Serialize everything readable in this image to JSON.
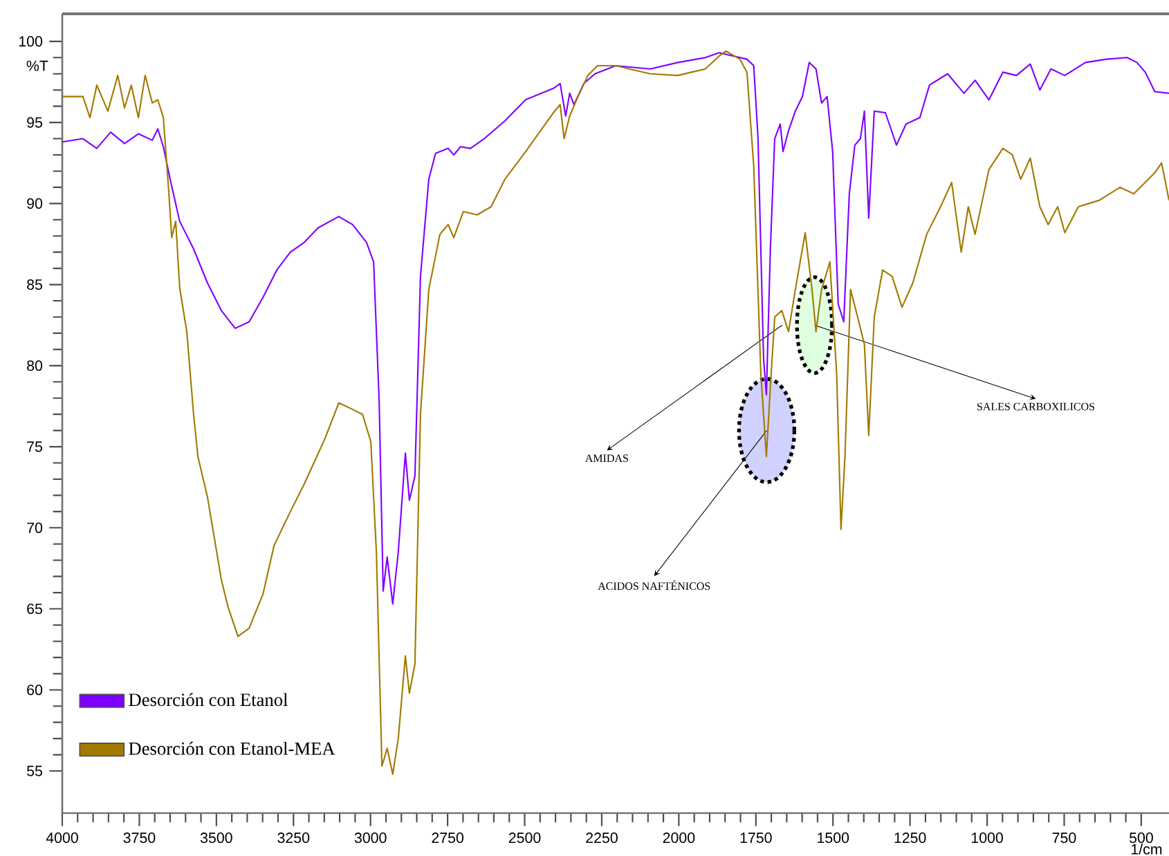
{
  "chart_data": {
    "type": "line",
    "xlabel": "1/cm",
    "ylabel": "%T",
    "xlim": [
      4000,
      410
    ],
    "ylim": [
      52.4,
      101.7
    ],
    "xticks": [
      4000,
      3750,
      3500,
      3250,
      3000,
      2750,
      2500,
      2250,
      2000,
      1750,
      1500,
      1250,
      1000,
      750,
      500
    ],
    "yticks": [
      55,
      60,
      65,
      70,
      75,
      80,
      85,
      90,
      95,
      100
    ],
    "legend": "bottom left",
    "annotations": [
      {
        "text": "AMIDAS",
        "x": 1665,
        "y": 82.5
      },
      {
        "text": "ACIDOS NAFTÉNICOS",
        "x": 1715,
        "y": 76
      },
      {
        "text": "SALES CARBOXILICOS",
        "x": 1560,
        "y": 82.5
      }
    ],
    "series": [
      {
        "name": "Desorción con Etanol",
        "color": "#8000ff",
        "x": [
          4000,
          3933,
          3888,
          3843,
          3798,
          3753,
          3708,
          3690,
          3672,
          3650,
          3619,
          3574,
          3529,
          3484,
          3439,
          3394,
          3349,
          3304,
          3260,
          3215,
          3170,
          3103,
          3058,
          3013,
          2990,
          2972,
          2959,
          2946,
          2928,
          2910,
          2887,
          2874,
          2856,
          2838,
          2811,
          2789,
          2748,
          2730,
          2708,
          2676,
          2631,
          2564,
          2497,
          2407,
          2385,
          2367,
          2354,
          2340,
          2308,
          2272,
          2205,
          2093,
          2003,
          1914,
          1869,
          1779,
          1757,
          1743,
          1725,
          1716,
          1703,
          1689,
          1671,
          1662,
          1644,
          1622,
          1599,
          1577,
          1555,
          1537,
          1519,
          1501,
          1483,
          1465,
          1447,
          1429,
          1411,
          1398,
          1384,
          1366,
          1330,
          1294,
          1263,
          1218,
          1187,
          1128,
          1075,
          1039,
          994,
          949,
          905,
          860,
          829,
          793,
          748,
          681,
          613,
          546,
          514,
          487,
          456,
          410
        ],
        "values": [
          93.8,
          94.0,
          93.4,
          94.4,
          93.7,
          94.3,
          93.9,
          94.6,
          93.5,
          91.5,
          88.9,
          87.2,
          85.1,
          83.4,
          82.3,
          82.7,
          84.2,
          85.9,
          87.0,
          87.6,
          88.5,
          89.2,
          88.7,
          87.6,
          86.4,
          77.8,
          66.1,
          68.2,
          65.3,
          68.5,
          74.6,
          71.7,
          73.2,
          85.5,
          91.5,
          93.1,
          93.4,
          93.0,
          93.5,
          93.4,
          94.0,
          95.1,
          96.4,
          97.1,
          97.4,
          95.4,
          96.8,
          96.1,
          97.4,
          98.0,
          98.5,
          98.3,
          98.7,
          99.0,
          99.3,
          98.9,
          98.5,
          94.0,
          80.4,
          78.2,
          87.2,
          94.0,
          94.9,
          93.2,
          94.5,
          95.7,
          96.6,
          98.7,
          98.3,
          96.2,
          96.6,
          93.2,
          83.8,
          82.7,
          90.6,
          93.6,
          94.0,
          95.7,
          89.1,
          95.7,
          95.6,
          93.6,
          94.9,
          95.3,
          97.3,
          98.0,
          96.8,
          97.6,
          96.4,
          98.1,
          97.9,
          98.6,
          97.0,
          98.3,
          97.9,
          98.7,
          98.9,
          99.0,
          98.7,
          98.1,
          96.9,
          96.8
        ]
      },
      {
        "name": "Desorción con Etanol-MEA",
        "color": "#a27a00",
        "x": [
          4000,
          3933,
          3910,
          3888,
          3852,
          3820,
          3798,
          3776,
          3753,
          3731,
          3708,
          3690,
          3672,
          3654,
          3645,
          3632,
          3619,
          3596,
          3574,
          3560,
          3529,
          3506,
          3484,
          3462,
          3430,
          3394,
          3349,
          3313,
          3260,
          3215,
          3148,
          3103,
          3058,
          3026,
          2999,
          2981,
          2963,
          2946,
          2928,
          2910,
          2887,
          2874,
          2856,
          2838,
          2811,
          2775,
          2748,
          2730,
          2699,
          2654,
          2609,
          2564,
          2497,
          2407,
          2385,
          2372,
          2354,
          2327,
          2295,
          2264,
          2205,
          2093,
          2003,
          1959,
          1914,
          1869,
          1847,
          1802,
          1779,
          1757,
          1734,
          1716,
          1703,
          1689,
          1666,
          1644,
          1622,
          1590,
          1568,
          1555,
          1537,
          1510,
          1488,
          1474,
          1461,
          1443,
          1420,
          1398,
          1384,
          1366,
          1339,
          1308,
          1276,
          1241,
          1196,
          1151,
          1115,
          1084,
          1061,
          1039,
          994,
          949,
          918,
          891,
          860,
          829,
          802,
          771,
          748,
          704,
          636,
          569,
          524,
          487,
          456,
          434,
          410
        ],
        "values": [
          96.6,
          96.6,
          95.3,
          97.3,
          95.7,
          97.9,
          95.9,
          97.3,
          95.3,
          97.9,
          96.2,
          96.4,
          95.3,
          90.6,
          87.9,
          88.9,
          84.8,
          82.1,
          77.0,
          74.4,
          71.9,
          69.3,
          66.8,
          65.1,
          63.3,
          63.8,
          65.9,
          68.9,
          71.0,
          72.7,
          75.5,
          77.7,
          77.3,
          77.0,
          75.3,
          68.5,
          55.3,
          56.4,
          54.8,
          57.0,
          62.1,
          59.8,
          61.6,
          77.0,
          84.7,
          88.1,
          88.7,
          87.9,
          89.5,
          89.3,
          89.8,
          91.5,
          93.2,
          95.6,
          96.1,
          94.0,
          95.4,
          96.6,
          97.9,
          98.5,
          98.5,
          98.0,
          97.9,
          98.1,
          98.3,
          99.1,
          99.4,
          98.9,
          98.1,
          92.3,
          79.5,
          74.4,
          78.7,
          83.0,
          83.4,
          82.1,
          84.7,
          88.2,
          84.7,
          82.1,
          84.7,
          86.4,
          79.5,
          69.9,
          74.4,
          84.7,
          83.0,
          81.3,
          75.7,
          83.0,
          85.9,
          85.5,
          83.6,
          85.1,
          88.1,
          89.8,
          91.3,
          87.0,
          89.8,
          88.1,
          92.1,
          93.4,
          93.0,
          91.5,
          92.8,
          89.8,
          88.7,
          89.8,
          88.2,
          89.8,
          90.2,
          91.0,
          90.6,
          91.3,
          91.9,
          92.5,
          90.2
        ]
      }
    ]
  }
}
